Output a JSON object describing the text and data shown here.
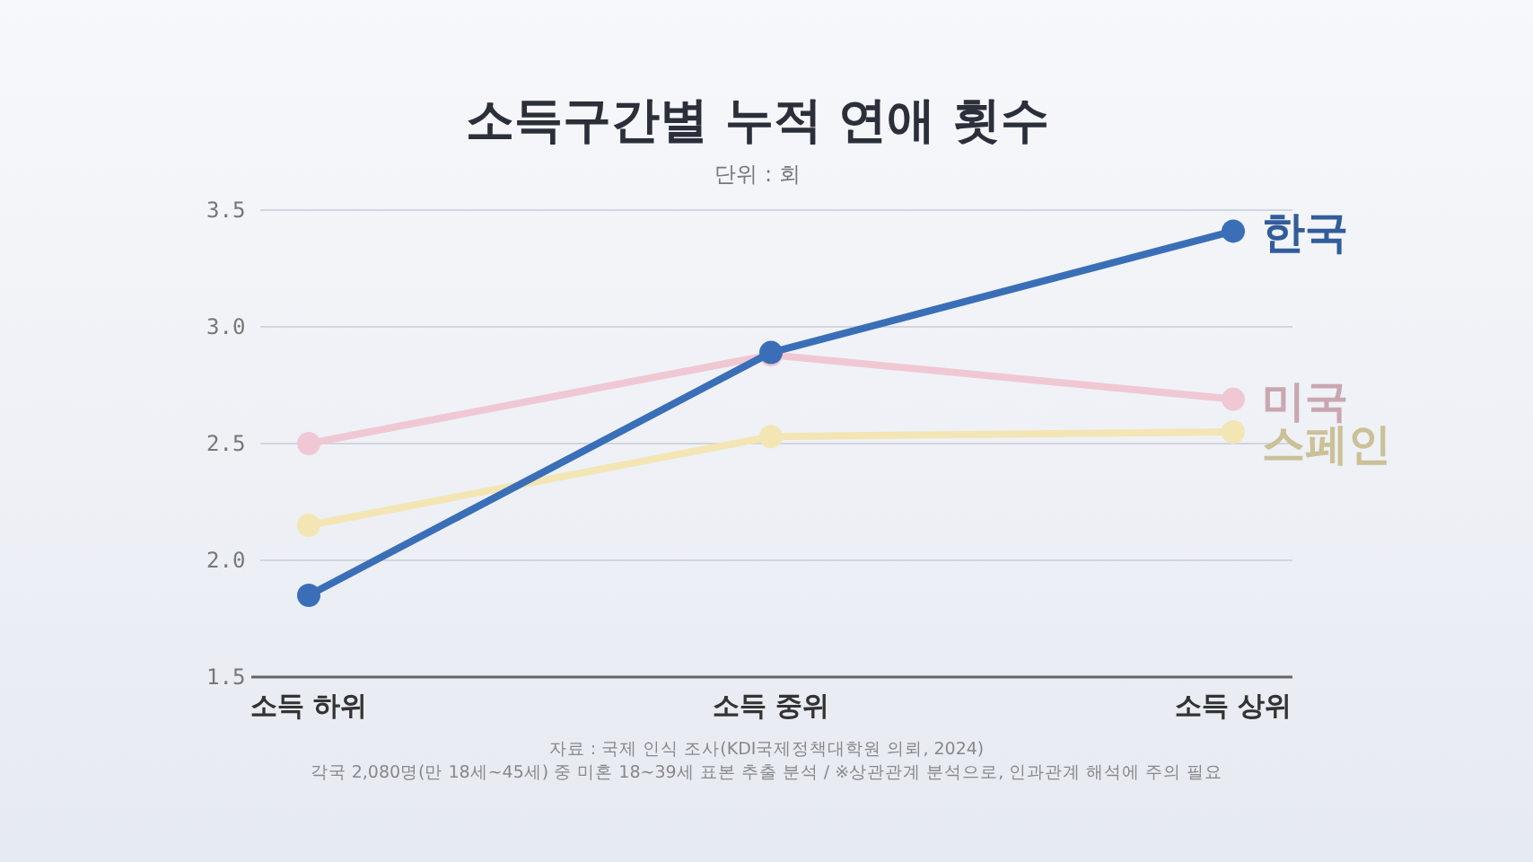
{
  "chart_data": {
    "type": "line",
    "title": "소득구간별 누적 연애 횟수",
    "subtitle": "단위 : 회",
    "categories": [
      "소득 하위",
      "소득 중위",
      "소득 상위"
    ],
    "series": [
      {
        "name": "미국",
        "color": "#f0c8d4",
        "values": [
          2.5,
          2.88,
          2.69
        ]
      },
      {
        "name": "스페인",
        "color": "#f3e6b4",
        "values": [
          2.15,
          2.53,
          2.55
        ]
      },
      {
        "name": "한국",
        "color": "#3a6fb8",
        "values": [
          1.85,
          2.89,
          3.41
        ]
      }
    ],
    "ylim": [
      1.5,
      3.5
    ],
    "yticks": [
      {
        "value": 1.5,
        "label": "1.5"
      },
      {
        "value": 2.0,
        "label": "2.0"
      },
      {
        "value": 2.5,
        "label": "2.5"
      },
      {
        "value": 3.0,
        "label": "3.0"
      },
      {
        "value": 3.5,
        "label": "3.5"
      }
    ],
    "grid": "y",
    "marker": "circle",
    "line_style": "solid",
    "legend": "right",
    "annotations": [
      "자료 : 국제 인식 조사(KDI국제정책대학원 의뢰, 2024)",
      "각국 2,080명(만 18세~45세) 중 미혼 18~39세 표본 추출 분석 / ※상관관계 분석으로, 인과관계 해석에 주의 필요"
    ]
  }
}
